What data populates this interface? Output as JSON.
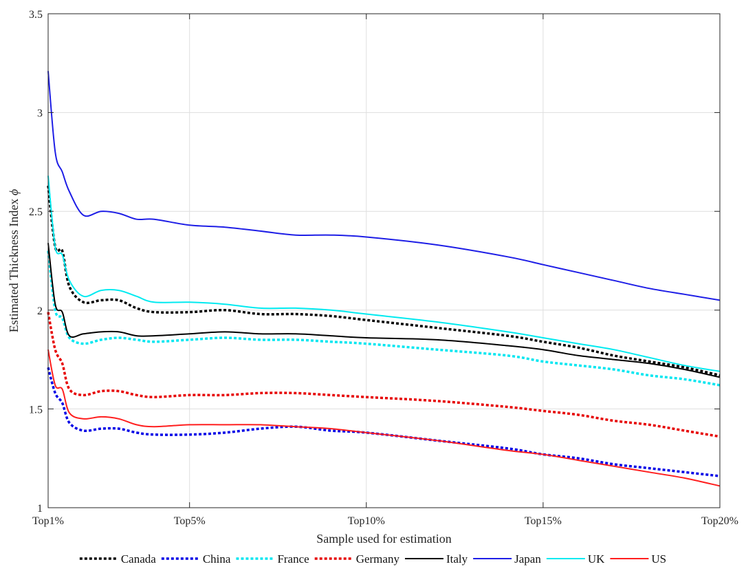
{
  "chart_data": {
    "type": "line",
    "title": "",
    "xlabel": "Sample used for estimation",
    "ylabel_text": "Estimated Thickness Index ",
    "ylabel_symbol": "ϕ",
    "ylim": [
      1,
      3.5
    ],
    "xlim": [
      1,
      20
    ],
    "grid": true,
    "legend_position": "bottom",
    "x_ticks": [
      {
        "value": 1,
        "label": "Top1%"
      },
      {
        "value": 5,
        "label": "Top5%"
      },
      {
        "value": 10,
        "label": "Top10%"
      },
      {
        "value": 15,
        "label": "Top15%"
      },
      {
        "value": 20,
        "label": "Top20%"
      }
    ],
    "y_ticks": [
      {
        "value": 1,
        "label": "1"
      },
      {
        "value": 1.5,
        "label": "1.5"
      },
      {
        "value": 2,
        "label": "2"
      },
      {
        "value": 2.5,
        "label": "2.5"
      },
      {
        "value": 3,
        "label": "3"
      },
      {
        "value": 3.5,
        "label": "3.5"
      }
    ],
    "series": [
      {
        "name": "Canada",
        "color": "#000000",
        "dash": true,
        "x": [
          1,
          1.2,
          1.4,
          1.6,
          2,
          2.5,
          3,
          3.5,
          4,
          5,
          6,
          7,
          8,
          9,
          10,
          12,
          14,
          15,
          16,
          17,
          18,
          19,
          20
        ],
        "y": [
          2.63,
          2.32,
          2.3,
          2.12,
          2.04,
          2.05,
          2.05,
          2.01,
          1.99,
          1.99,
          2.0,
          1.98,
          1.98,
          1.97,
          1.95,
          1.91,
          1.87,
          1.84,
          1.81,
          1.77,
          1.74,
          1.71,
          1.67
        ]
      },
      {
        "name": "China",
        "color": "#0000e6",
        "dash": true,
        "x": [
          1,
          1.2,
          1.4,
          1.6,
          2,
          2.5,
          3,
          3.5,
          4,
          5,
          6,
          7,
          8,
          9,
          10,
          12,
          14,
          15,
          16,
          17,
          18,
          19,
          20
        ],
        "y": [
          1.71,
          1.58,
          1.53,
          1.43,
          1.39,
          1.4,
          1.4,
          1.38,
          1.37,
          1.37,
          1.38,
          1.4,
          1.41,
          1.39,
          1.38,
          1.34,
          1.3,
          1.27,
          1.25,
          1.22,
          1.2,
          1.18,
          1.16
        ]
      },
      {
        "name": "France",
        "color": "#00e6f0",
        "dash": true,
        "x": [
          1,
          1.2,
          1.4,
          1.6,
          2,
          2.5,
          3,
          3.5,
          4,
          5,
          6,
          7,
          8,
          9,
          10,
          12,
          14,
          15,
          16,
          17,
          18,
          19,
          20
        ],
        "y": [
          2.3,
          2.0,
          1.96,
          1.86,
          1.83,
          1.85,
          1.86,
          1.85,
          1.84,
          1.85,
          1.86,
          1.85,
          1.85,
          1.84,
          1.83,
          1.8,
          1.77,
          1.74,
          1.72,
          1.7,
          1.67,
          1.65,
          1.62
        ]
      },
      {
        "name": "Germany",
        "color": "#e60000",
        "dash": true,
        "x": [
          1,
          1.2,
          1.4,
          1.6,
          2,
          2.5,
          3,
          3.5,
          4,
          5,
          6,
          7,
          8,
          9,
          10,
          12,
          14,
          15,
          16,
          17,
          18,
          19,
          20
        ],
        "y": [
          1.99,
          1.8,
          1.73,
          1.6,
          1.57,
          1.59,
          1.59,
          1.57,
          1.56,
          1.57,
          1.57,
          1.58,
          1.58,
          1.57,
          1.56,
          1.54,
          1.51,
          1.49,
          1.47,
          1.44,
          1.42,
          1.39,
          1.36
        ]
      },
      {
        "name": "Italy",
        "color": "#000000",
        "dash": false,
        "x": [
          1,
          1.2,
          1.4,
          1.6,
          2,
          2.5,
          3,
          3.5,
          4,
          5,
          6,
          7,
          8,
          9,
          10,
          12,
          14,
          15,
          16,
          17,
          18,
          19,
          20
        ],
        "y": [
          2.34,
          2.03,
          1.99,
          1.87,
          1.88,
          1.89,
          1.89,
          1.87,
          1.87,
          1.88,
          1.89,
          1.88,
          1.88,
          1.87,
          1.86,
          1.85,
          1.82,
          1.8,
          1.77,
          1.75,
          1.73,
          1.7,
          1.66
        ]
      },
      {
        "name": "Japan",
        "color": "#1e1ee6",
        "dash": false,
        "x": [
          1,
          1.2,
          1.4,
          1.6,
          2,
          2.5,
          3,
          3.5,
          4,
          5,
          6,
          7,
          8,
          9,
          10,
          12,
          14,
          15,
          16,
          17,
          18,
          19,
          20
        ],
        "y": [
          3.21,
          2.8,
          2.7,
          2.6,
          2.48,
          2.5,
          2.49,
          2.46,
          2.46,
          2.43,
          2.42,
          2.4,
          2.38,
          2.38,
          2.37,
          2.33,
          2.27,
          2.23,
          2.19,
          2.15,
          2.11,
          2.08,
          2.05
        ]
      },
      {
        "name": "UK",
        "color": "#00eaf0",
        "dash": false,
        "x": [
          1,
          1.2,
          1.4,
          1.6,
          2,
          2.5,
          3,
          3.5,
          4,
          5,
          6,
          7,
          8,
          9,
          10,
          12,
          14,
          15,
          16,
          17,
          18,
          19,
          20
        ],
        "y": [
          2.68,
          2.32,
          2.28,
          2.15,
          2.07,
          2.1,
          2.1,
          2.07,
          2.04,
          2.04,
          2.03,
          2.01,
          2.01,
          2.0,
          1.98,
          1.94,
          1.89,
          1.86,
          1.83,
          1.8,
          1.76,
          1.72,
          1.69
        ]
      },
      {
        "name": "US",
        "color": "#ff1e1e",
        "dash": false,
        "x": [
          1,
          1.2,
          1.4,
          1.6,
          2,
          2.5,
          3,
          3.5,
          4,
          5,
          6,
          7,
          8,
          9,
          10,
          12,
          14,
          15,
          16,
          17,
          18,
          19,
          20
        ],
        "y": [
          1.8,
          1.62,
          1.6,
          1.48,
          1.45,
          1.46,
          1.45,
          1.42,
          1.41,
          1.42,
          1.42,
          1.42,
          1.41,
          1.4,
          1.38,
          1.34,
          1.29,
          1.27,
          1.24,
          1.21,
          1.18,
          1.15,
          1.11
        ]
      }
    ]
  }
}
